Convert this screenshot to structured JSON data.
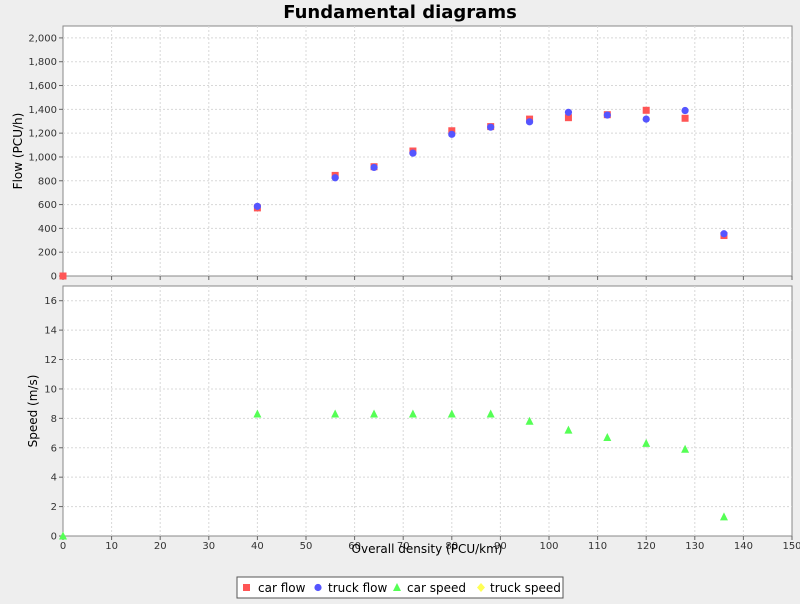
{
  "chart_data": {
    "type": "scatter",
    "title": "Fundamental diagrams",
    "xlabel": "Overall density (PCU/km)",
    "xlim": [
      0,
      150
    ],
    "x_ticks": [
      "0",
      "10",
      "20",
      "30",
      "40",
      "50",
      "60",
      "70",
      "80",
      "90",
      "100",
      "110",
      "120",
      "130",
      "140",
      "150"
    ],
    "grid": true,
    "legend_position": "bottom",
    "legend": [
      "car flow",
      "truck flow",
      "car speed",
      "truck speed"
    ],
    "panels": [
      {
        "ylabel": "Flow (PCU/h)",
        "ylim": [
          0,
          2100
        ],
        "y_ticks": [
          "0",
          "200",
          "400",
          "600",
          "800",
          "1,000",
          "1,200",
          "1,400",
          "1,600",
          "1,800",
          "2,000"
        ],
        "series": [
          {
            "name": "car flow",
            "marker": "square",
            "color": "#ff5555",
            "points": [
              [
                0,
                0
              ],
              [
                40,
                572
              ],
              [
                56,
                845
              ],
              [
                64,
                918
              ],
              [
                72,
                1050
              ],
              [
                80,
                1220
              ],
              [
                88,
                1255
              ],
              [
                96,
                1318
              ],
              [
                104,
                1330
              ],
              [
                112,
                1355
              ],
              [
                120,
                1392
              ],
              [
                128,
                1325
              ],
              [
                136,
                340
              ]
            ]
          },
          {
            "name": "truck flow",
            "marker": "circle",
            "color": "#5555ff",
            "points": [
              [
                40,
                585
              ],
              [
                56,
                825
              ],
              [
                64,
                912
              ],
              [
                72,
                1032
              ],
              [
                80,
                1190
              ],
              [
                88,
                1250
              ],
              [
                96,
                1295
              ],
              [
                104,
                1375
              ],
              [
                112,
                1352
              ],
              [
                120,
                1318
              ],
              [
                128,
                1390
              ],
              [
                136,
                355
              ]
            ]
          }
        ]
      },
      {
        "ylabel": "Speed (m/s)",
        "ylim": [
          0,
          17
        ],
        "y_ticks": [
          "0",
          "2",
          "4",
          "6",
          "8",
          "10",
          "12",
          "14",
          "16"
        ],
        "series": [
          {
            "name": "car speed",
            "marker": "triangle",
            "color": "#55ff55",
            "points": [
              [
                0,
                0
              ],
              [
                40,
                8.3
              ],
              [
                56,
                8.3
              ],
              [
                64,
                8.3
              ],
              [
                72,
                8.3
              ],
              [
                80,
                8.3
              ],
              [
                88,
                8.3
              ],
              [
                96,
                7.8
              ],
              [
                104,
                7.2
              ],
              [
                112,
                6.7
              ],
              [
                120,
                6.3
              ],
              [
                128,
                5.9
              ],
              [
                136,
                1.3
              ]
            ]
          },
          {
            "name": "truck speed",
            "marker": "diamond",
            "color": "#ffff55",
            "points": []
          }
        ]
      }
    ]
  }
}
